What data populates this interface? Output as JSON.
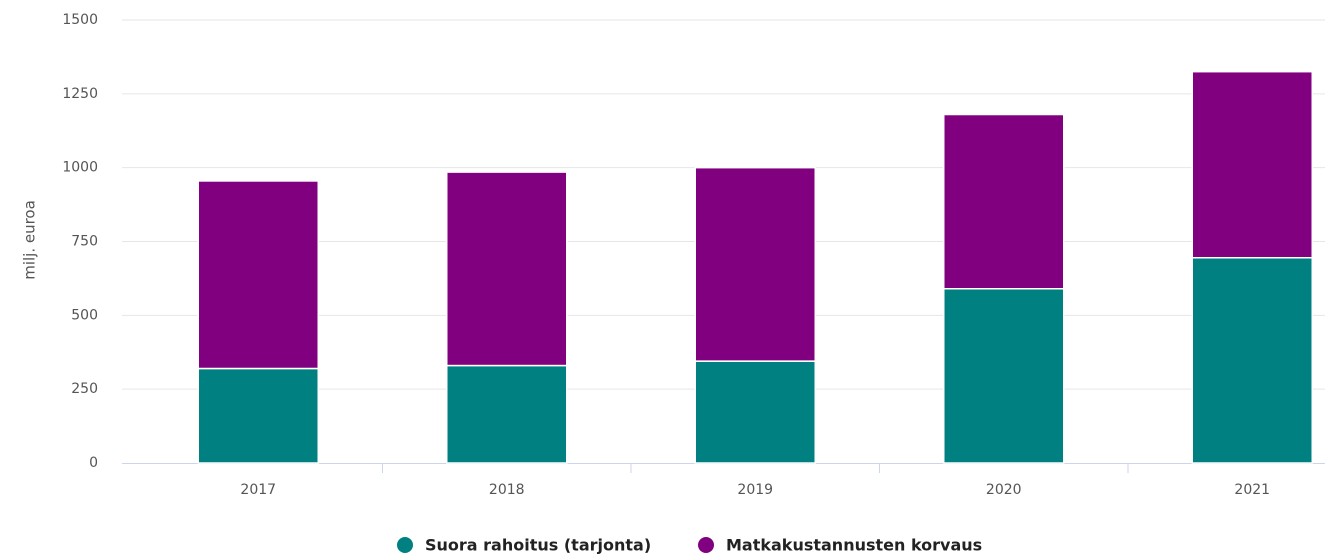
{
  "chart_data": {
    "type": "stacked_bar",
    "y_label": "milj. euroa",
    "categories": [
      "2017",
      "2018",
      "2019",
      "2020",
      "2021"
    ],
    "series": [
      {
        "name": "Suora rahoitus (tarjonta)",
        "color": "#008080",
        "values": [
          320,
          330,
          345,
          590,
          695
        ]
      },
      {
        "name": "Matkakustannusten korvaus",
        "color": "#800080",
        "values": [
          635,
          655,
          655,
          590,
          630
        ]
      }
    ],
    "ylim": [
      0,
      1500
    ],
    "yticks": [
      0,
      250,
      500,
      750,
      1000,
      1250,
      1500
    ],
    "grid": true
  }
}
